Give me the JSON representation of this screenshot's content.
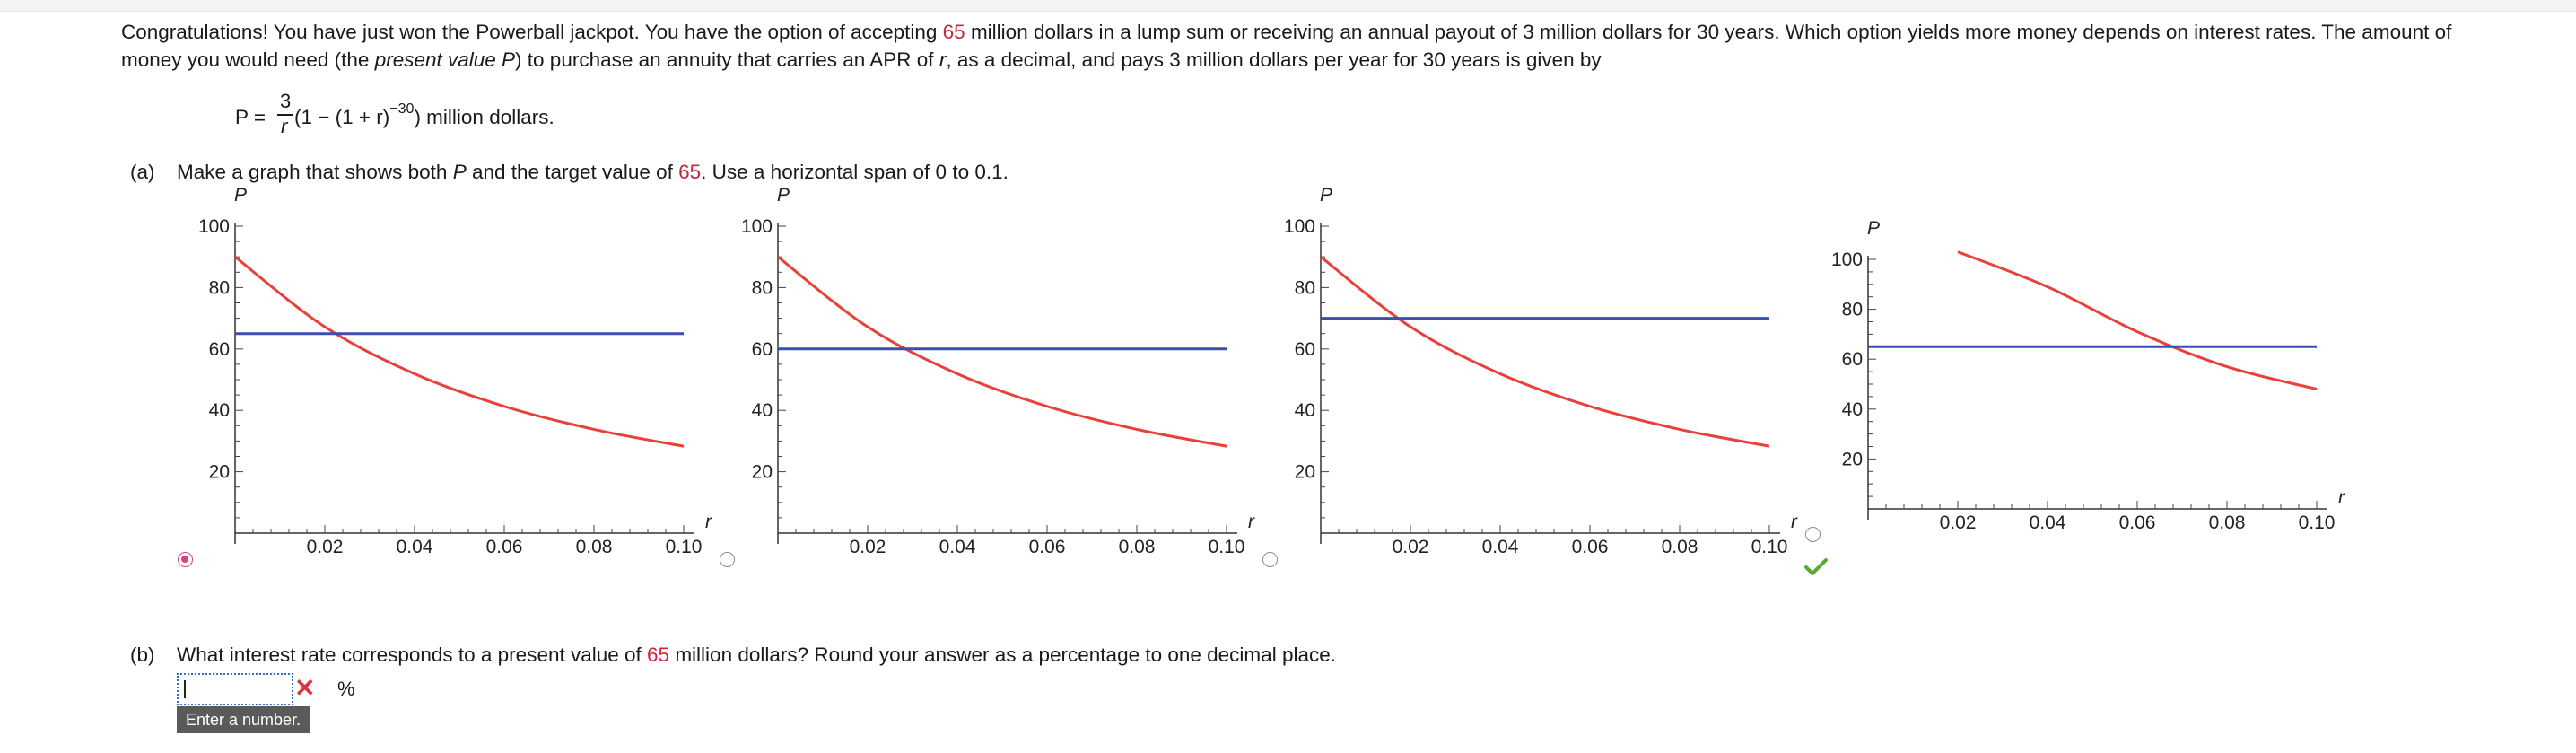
{
  "intro": {
    "t1": "Congratulations! You have just won the Powerball jackpot. You have the option of accepting ",
    "lump": "65",
    "t2": " million dollars in a lump sum or receiving an annual payout of 3 million dollars for 30 years. Which option yields more money depends on interest rates. The amount of money you would need (the ",
    "pv": "present value P",
    "t3": ") to purchase an annuity that carries an APR of ",
    "r": "r",
    "t4": ", as a decimal, and pays 3 million dollars per year for 30 years is given by"
  },
  "formula": {
    "lhs": "P =",
    "numerator": "3",
    "denominator": "r",
    "body": "(1 − (1 + r)",
    "exponent": "−30",
    "tail": ") million dollars."
  },
  "part_a": {
    "label": "(a)",
    "t1": "Make a graph that shows both ",
    "p": "P",
    "t2": " and the target value of ",
    "target": "65",
    "t3": ". Use a horizontal span of 0 to 0.1."
  },
  "chart_data": [
    {
      "type": "line",
      "option": "first",
      "selected": true,
      "ylabel": "P",
      "xlabel": "r",
      "xlim": [
        0,
        0.1
      ],
      "ylim": [
        0,
        100
      ],
      "x_ticks": [
        "0.02",
        "0.04",
        "0.06",
        "0.08",
        "0.10"
      ],
      "y_ticks": [
        "20",
        "40",
        "60",
        "80",
        "100"
      ],
      "series": [
        {
          "name": "P(r)",
          "color": "#e8413a",
          "x": [
            0,
            0.02,
            0.04,
            0.06,
            0.08,
            0.1
          ],
          "y": [
            90,
            67.2,
            51.9,
            41.3,
            33.8,
            28.3
          ]
        },
        {
          "name": "target",
          "color": "#3b4fb0",
          "x": [
            0,
            0.1
          ],
          "y": [
            65,
            65
          ]
        }
      ]
    },
    {
      "type": "line",
      "option": "second",
      "selected": false,
      "ylabel": "P",
      "xlabel": "r",
      "xlim": [
        0,
        0.1
      ],
      "ylim": [
        0,
        100
      ],
      "x_ticks": [
        "0.02",
        "0.04",
        "0.06",
        "0.08",
        "0.10"
      ],
      "y_ticks": [
        "20",
        "40",
        "60",
        "80",
        "100"
      ],
      "series": [
        {
          "name": "P(r)",
          "color": "#e8413a",
          "x": [
            0,
            0.02,
            0.04,
            0.06,
            0.08,
            0.1
          ],
          "y": [
            90,
            67.2,
            51.9,
            41.3,
            33.8,
            28.3
          ]
        },
        {
          "name": "target",
          "color": "#3b4fb0",
          "x": [
            0,
            0.1
          ],
          "y": [
            60,
            60
          ]
        }
      ]
    },
    {
      "type": "line",
      "option": "third",
      "selected": false,
      "ylabel": "P",
      "xlabel": "r",
      "xlim": [
        0,
        0.1
      ],
      "ylim": [
        0,
        100
      ],
      "x_ticks": [
        "0.02",
        "0.04",
        "0.06",
        "0.08",
        "0.10"
      ],
      "y_ticks": [
        "20",
        "40",
        "60",
        "80",
        "100"
      ],
      "series": [
        {
          "name": "P(r)",
          "color": "#e8413a",
          "x": [
            0,
            0.02,
            0.04,
            0.06,
            0.08,
            0.1
          ],
          "y": [
            90,
            67.2,
            51.9,
            41.3,
            33.8,
            28.3
          ]
        },
        {
          "name": "target",
          "color": "#3b4fb0",
          "x": [
            0,
            0.1
          ],
          "y": [
            70,
            70
          ]
        }
      ]
    },
    {
      "type": "line",
      "option": "fourth",
      "selected": false,
      "ylabel": "P",
      "xlabel": "r",
      "xlim": [
        0,
        0.1
      ],
      "ylim": [
        0,
        100
      ],
      "x_ticks": [
        "0.02",
        "0.04",
        "0.06",
        "0.08",
        "0.10"
      ],
      "y_ticks": [
        "20",
        "40",
        "60",
        "80",
        "100"
      ],
      "series": [
        {
          "name": "P(r)",
          "color": "#e8413a",
          "x": [
            0.02,
            0.04,
            0.06,
            0.08,
            0.1
          ],
          "y": [
            103,
            89,
            71,
            57,
            48
          ]
        },
        {
          "name": "target",
          "color": "#3b4fb0",
          "x": [
            0,
            0.1
          ],
          "y": [
            65,
            65
          ]
        }
      ]
    }
  ],
  "part_b": {
    "label": "(b)",
    "t1": "What interest rate corresponds to a present value of ",
    "target": "65",
    "t2": " million dollars? Round your answer as a percentage to one decimal place.",
    "answer_value": "",
    "percent": "%",
    "tooltip": "Enter a number."
  },
  "colors": {
    "accent_red": "#c8283a",
    "curve": "#e8413a",
    "target_line": "#3b4fb0",
    "radio_selected": "#d6457e",
    "correct": "#5aa83a",
    "wrong": "#d9363e"
  }
}
